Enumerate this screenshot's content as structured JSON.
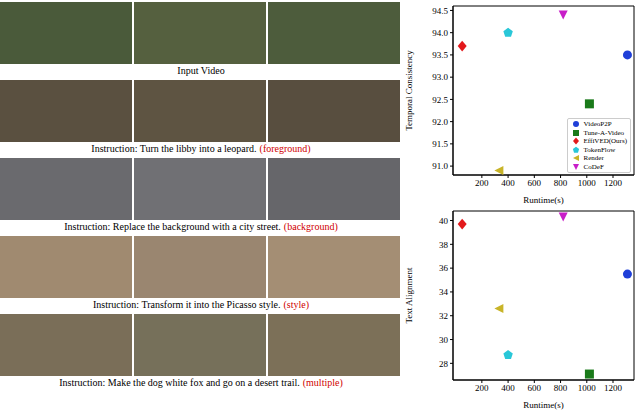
{
  "figure": {
    "rows": [
      {
        "caption": "Input Video"
      },
      {
        "caption": "Instruction: Turn the libby into a leopard.",
        "tag": "(foreground)"
      },
      {
        "caption": "Instruction: Replace the background with a city street.",
        "tag": "(background)"
      },
      {
        "caption": "Instruction: Transform it into the Picasso style.",
        "tag": "(style)"
      },
      {
        "caption": "Instruction: Make the dog white fox and go on a desert trail.",
        "tag": "(multiple)"
      }
    ]
  },
  "chart_data": [
    {
      "type": "scatter",
      "x_label": "Runtime(s)",
      "y_label": "Temporal Consistency",
      "xlim": [
        -20,
        1360
      ],
      "xticks": [
        200,
        400,
        600,
        800,
        1000,
        1200
      ],
      "ylim": [
        90.8,
        94.6
      ],
      "yticks": [
        {
          "value": 91,
          "label": "91.0"
        },
        91.5,
        {
          "value": 92,
          "label": "92.0"
        },
        92.5,
        {
          "value": 93,
          "label": "93.0"
        },
        93.5,
        {
          "value": 94,
          "label": "94.0"
        },
        94.5
      ],
      "legend": "lower right",
      "series": [
        {
          "name": "VideoP2P",
          "color": "#1f3fd8",
          "marker": "circle",
          "x": [
            1310
          ],
          "values": [
            93.5
          ]
        },
        {
          "name": "Tune-A-Video",
          "color": "#1a7a1a",
          "marker": "square",
          "x": [
            1020
          ],
          "values": [
            92.4
          ]
        },
        {
          "name": "EffiVED(Ours)",
          "color": "#e3191c",
          "marker": "diamond",
          "x": [
            50
          ],
          "values": [
            93.7
          ]
        },
        {
          "name": "TokenFlow",
          "color": "#29c7d8",
          "marker": "pentagon",
          "x": [
            400
          ],
          "values": [
            94.0
          ]
        },
        {
          "name": "Render",
          "color": "#c8b428",
          "marker": "triangle_left",
          "x": [
            330
          ],
          "values": [
            90.9
          ]
        },
        {
          "name": "CoDeF",
          "color": "#c81ec8",
          "marker": "triangle_down",
          "x": [
            820
          ],
          "values": [
            94.4
          ]
        }
      ]
    },
    {
      "type": "scatter",
      "x_label": "Runtime(s)",
      "y_label": "Text Alignment",
      "xlim": [
        -20,
        1360
      ],
      "xticks": [
        200,
        400,
        600,
        800,
        1000,
        1200
      ],
      "ylim": [
        26.6,
        40.8
      ],
      "yticks": [
        28,
        30,
        32,
        34,
        36,
        38,
        40
      ],
      "series": [
        {
          "name": "VideoP2P",
          "color": "#1f3fd8",
          "marker": "circle",
          "x": [
            1310
          ],
          "values": [
            35.5
          ]
        },
        {
          "name": "Tune-A-Video",
          "color": "#1a7a1a",
          "marker": "square",
          "x": [
            1020
          ],
          "values": [
            27.1
          ]
        },
        {
          "name": "EffiVED(Ours)",
          "color": "#e3191c",
          "marker": "diamond",
          "x": [
            50
          ],
          "values": [
            39.7
          ]
        },
        {
          "name": "TokenFlow",
          "color": "#29c7d8",
          "marker": "pentagon",
          "x": [
            400
          ],
          "values": [
            28.7
          ]
        },
        {
          "name": "Render",
          "color": "#c8b428",
          "marker": "triangle_left",
          "x": [
            330
          ],
          "values": [
            32.6
          ]
        },
        {
          "name": "CoDeF",
          "color": "#c81ec8",
          "marker": "triangle_down",
          "x": [
            820
          ],
          "values": [
            40.3
          ]
        }
      ]
    }
  ]
}
